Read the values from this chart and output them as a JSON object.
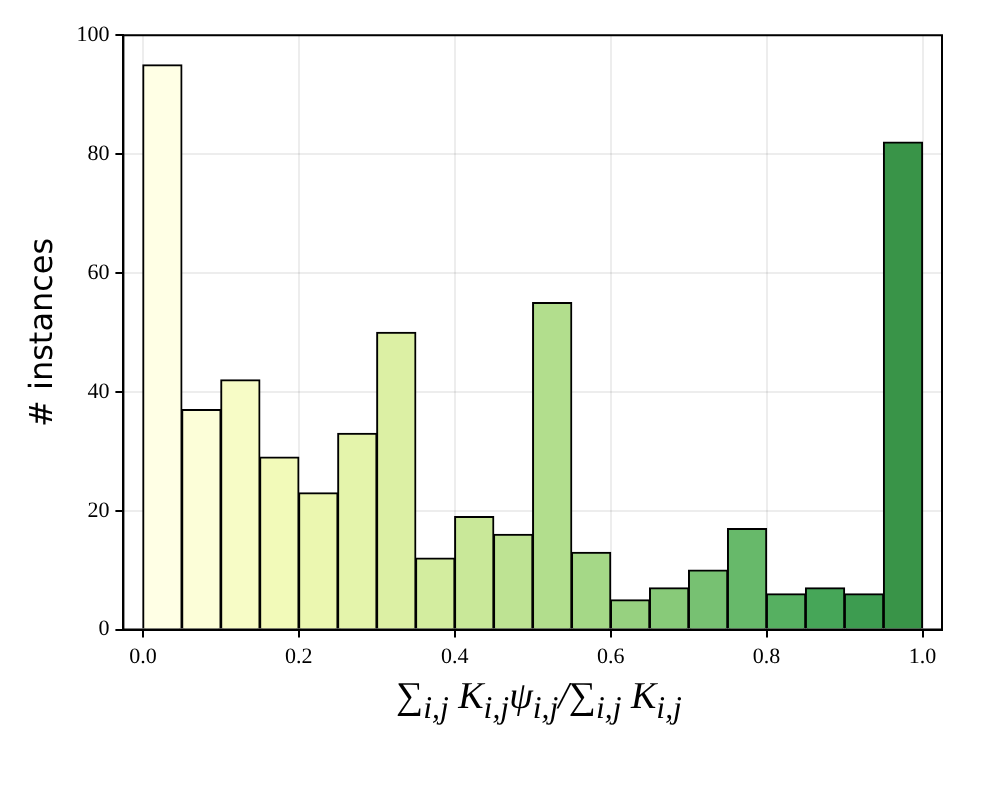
{
  "chart_data": {
    "type": "histogram",
    "xlabel": "∑$_{i,j}$ K$_{i,j}$ψ$_{i,j}$/∑$_{i,j}$ K$_{i,j}$",
    "ylabel": "# instances",
    "bins": [
      0,
      0.05,
      0.1,
      0.15,
      0.2,
      0.25,
      0.3,
      0.35,
      0.4,
      0.45,
      0.5,
      0.55,
      0.6,
      0.65,
      0.7,
      0.75,
      0.8,
      0.85,
      0.9,
      0.95,
      1.0
    ],
    "values": [
      95,
      37,
      42,
      29,
      23,
      33,
      50,
      12,
      19,
      16,
      55,
      13,
      5,
      7,
      10,
      17,
      6,
      7,
      6,
      82
    ],
    "colors": [
      "#ffffe5",
      "#fcfed8",
      "#f7fcc6",
      "#f2fab9",
      "#ebf7b0",
      "#e4f4ab",
      "#dcf0a4",
      "#d3ed9f",
      "#c9e899",
      "#bee393",
      "#b2de8d",
      "#a5d887",
      "#97d180",
      "#88ca79",
      "#77c172",
      "#67b96a",
      "#56b061",
      "#46a658",
      "#3d9c50",
      "#399448"
    ],
    "xlim": [
      -0.025,
      1.025
    ],
    "ylim": [
      0,
      100
    ],
    "xticks": [
      {
        "value": 0,
        "label": "0.0"
      },
      0.2,
      0.4,
      0.6,
      0.8,
      {
        "value": 1,
        "label": "1.0"
      }
    ],
    "yticks": [
      0,
      20,
      40,
      60,
      80,
      100
    ],
    "grid": true
  }
}
